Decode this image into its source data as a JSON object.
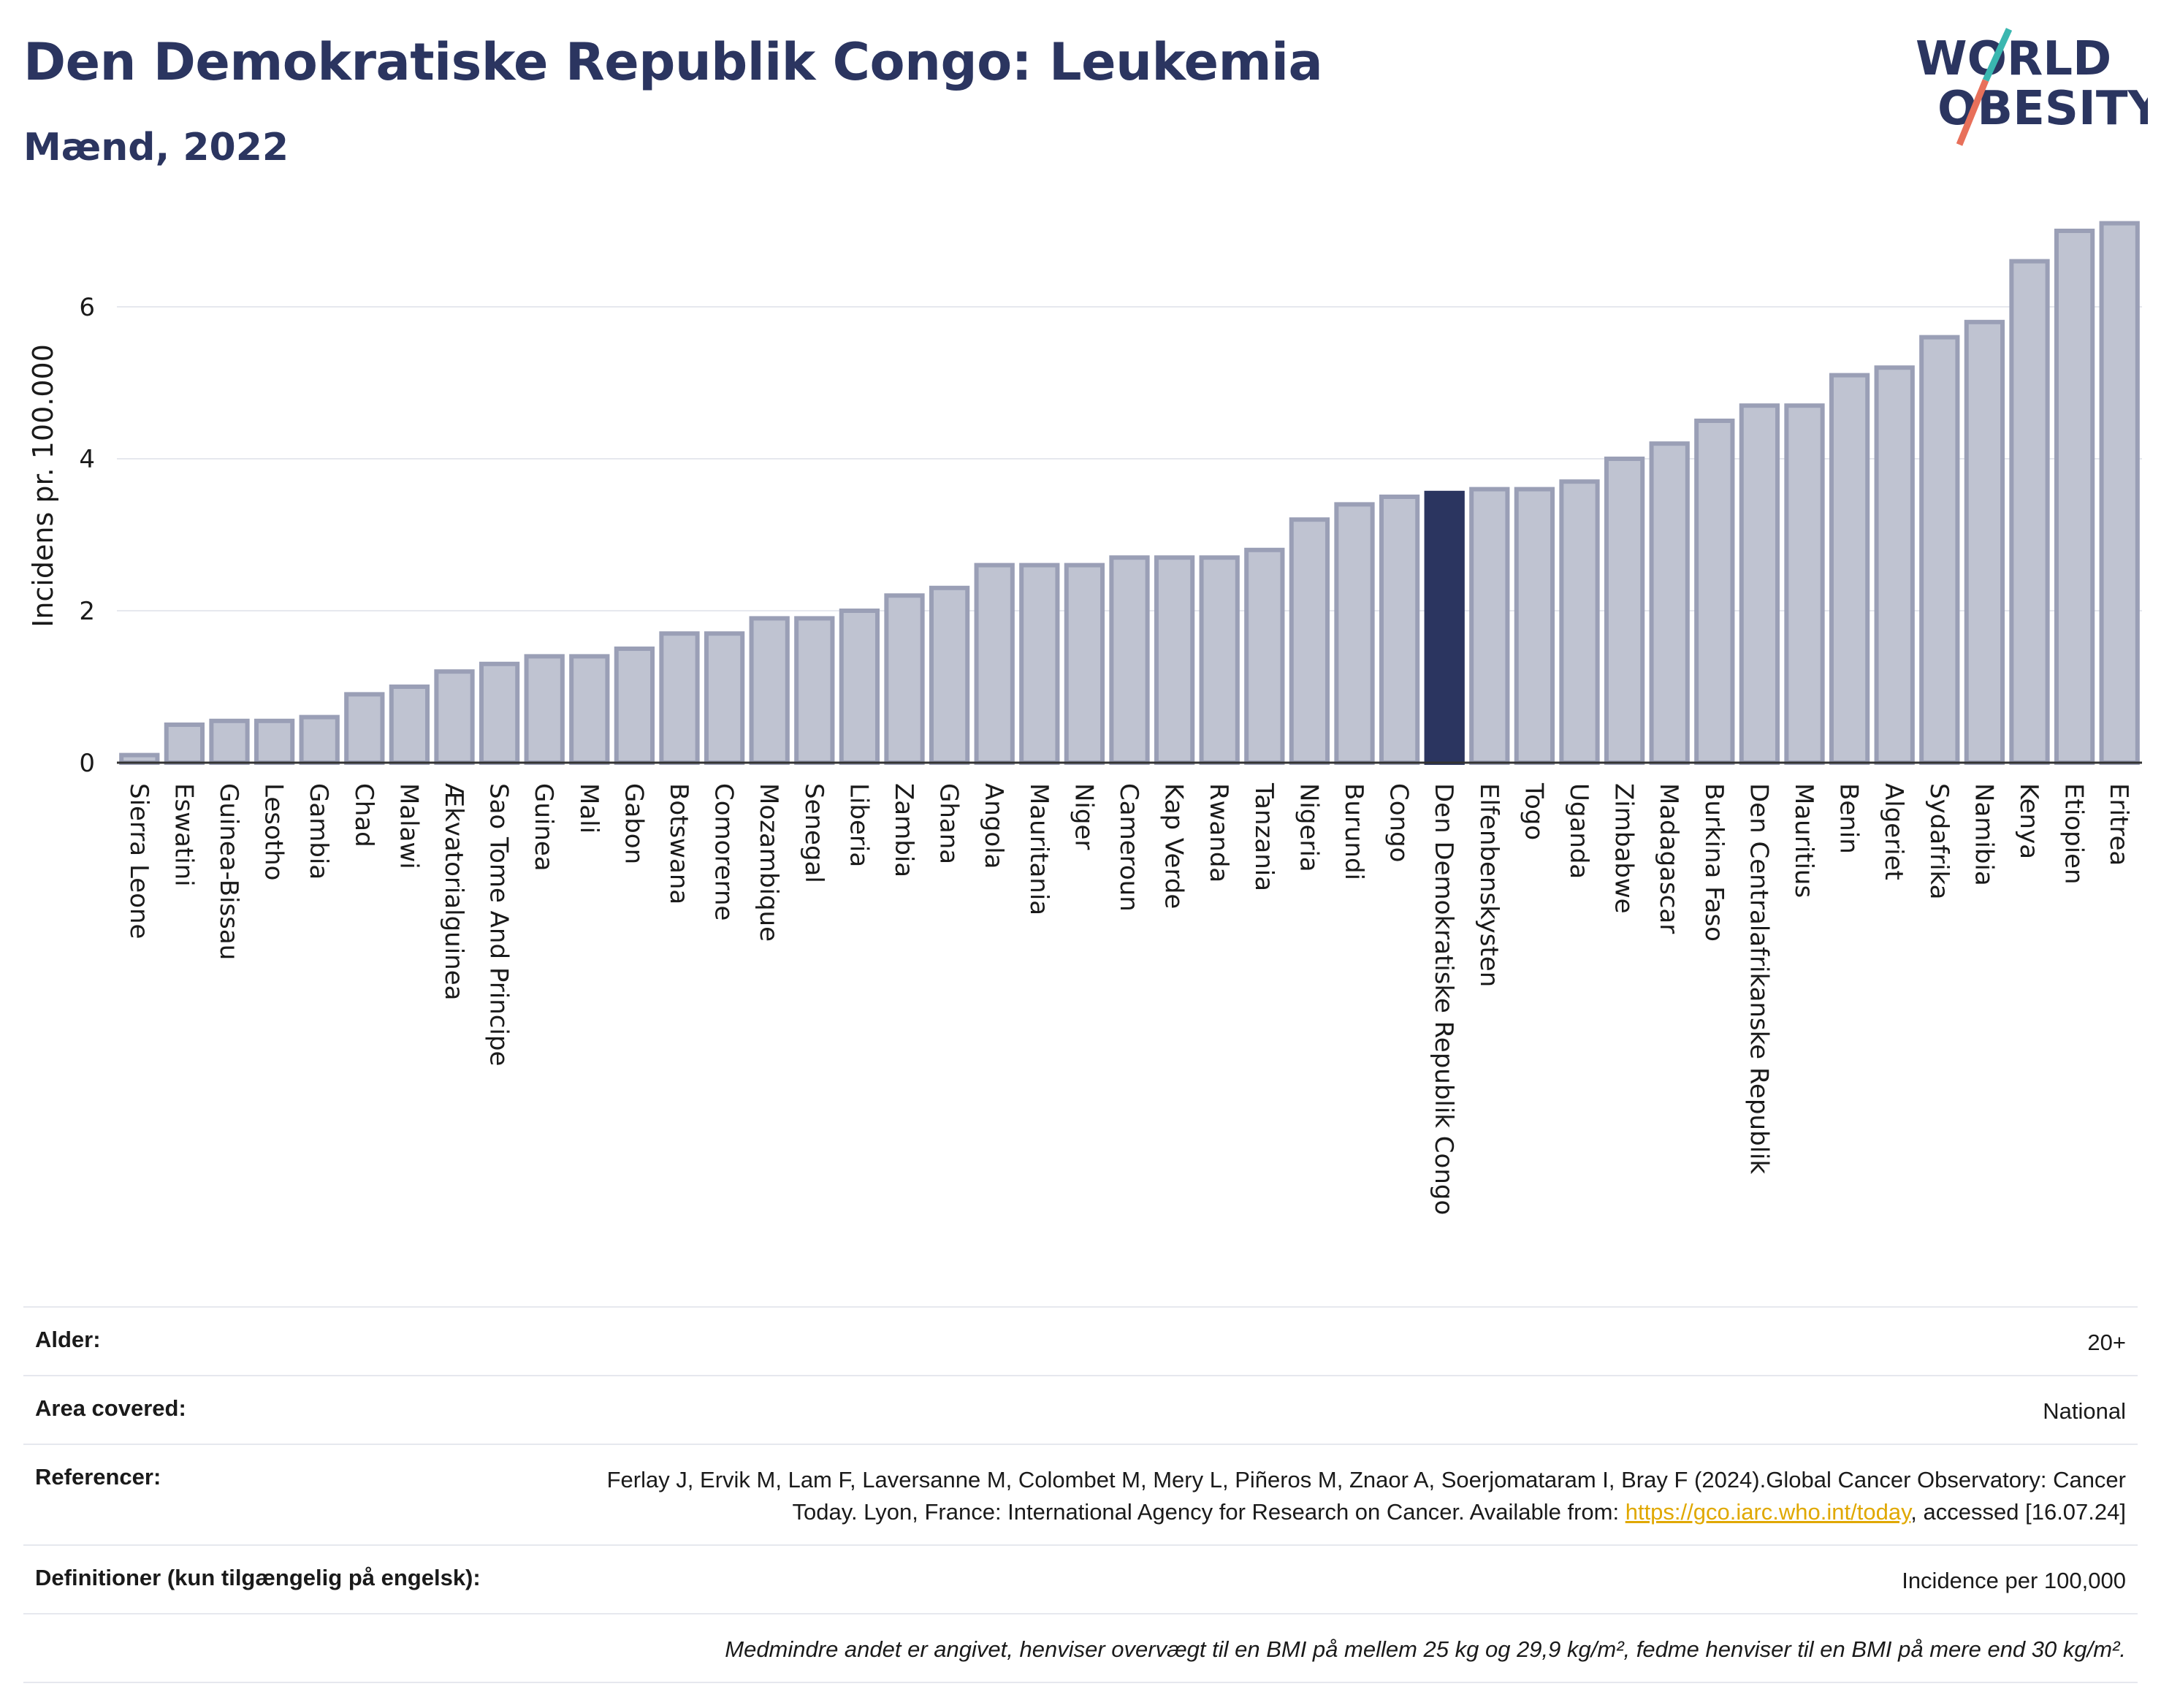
{
  "header": {
    "title": "Den Demokratiske Republik Congo: Leukemia",
    "subtitle": "Mænd, 2022"
  },
  "logo": {
    "line1": "WORLD",
    "line2": "OBESITY",
    "colors": {
      "text": "#2b3560",
      "slash_top": "#3ab7b0",
      "slash_bottom": "#e8705a"
    }
  },
  "colors": {
    "bar_fill": "#bfc3d1",
    "bar_stroke": "#9a9fb6",
    "highlight": "#2b3560",
    "grid": "#e6e8ee",
    "axis": "#333333"
  },
  "chart_data": {
    "type": "bar",
    "title": "",
    "xlabel": "",
    "ylabel": "Incidens pr. 100.000",
    "ylim": [
      0,
      7.25
    ],
    "yticks": [
      0,
      2,
      4,
      6
    ],
    "grid": true,
    "highlight": "Den Demokratiske Republik Congo",
    "categories": [
      "Sierra Leone",
      "Eswatini",
      "Guinea-Bissau",
      "Lesotho",
      "Gambia",
      "Chad",
      "Malawi",
      "Ækvatorialguinea",
      "Sao Tome And Principe",
      "Guinea",
      "Mali",
      "Gabon",
      "Botswana",
      "Comorerne",
      "Mozambique",
      "Senegal",
      "Liberia",
      "Zambia",
      "Ghana",
      "Angola",
      "Mauritania",
      "Niger",
      "Cameroun",
      "Kap Verde",
      "Rwanda",
      "Tanzania",
      "Nigeria",
      "Burundi",
      "Congo",
      "Den Demokratiske Republik Congo",
      "Elfenbenskysten",
      "Togo",
      "Uganda",
      "Zimbabwe",
      "Madagascar",
      "Burkina Faso",
      "Den Centralafrikanske Republik",
      "Mauritius",
      "Benin",
      "Algeriet",
      "Sydafrika",
      "Namibia",
      "Kenya",
      "Etiopien",
      "Eritrea"
    ],
    "values": [
      0.1,
      0.5,
      0.55,
      0.55,
      0.6,
      0.9,
      1.0,
      1.2,
      1.3,
      1.4,
      1.4,
      1.5,
      1.7,
      1.7,
      1.9,
      1.9,
      2.0,
      2.2,
      2.3,
      2.6,
      2.6,
      2.6,
      2.7,
      2.7,
      2.7,
      2.8,
      3.2,
      3.4,
      3.5,
      3.55,
      3.6,
      3.6,
      3.7,
      4.0,
      4.2,
      4.5,
      4.7,
      4.7,
      5.1,
      5.2,
      5.6,
      5.8,
      6.6,
      7.0,
      7.1
    ]
  },
  "footer": {
    "age_label": "Alder:",
    "age_value": "20+",
    "area_label": "Area covered:",
    "area_value": "National",
    "ref_label": "Referencer:",
    "ref_text_1": "Ferlay J, Ervik M, Lam F, Laversanne M, Colombet M, Mery L, Piñeros M, Znaor A, Soerjomataram I, Bray F (2024).Global Cancer Observatory: Cancer Today. Lyon, France: International Agency for Research on Cancer. Available from: ",
    "ref_link": "https://gco.iarc.who.int/today",
    "ref_text_2": ", accessed [16.07.24]",
    "def_label": "Definitioner (kun tilgængelig på engelsk):",
    "def_value": "Incidence per 100,000",
    "note": "Medmindre andet er angivet, henviser overvægt til en BMI på mellem 25 kg og 29,9 kg/m², fedme henviser til en BMI på mere end 30 kg/m²."
  }
}
